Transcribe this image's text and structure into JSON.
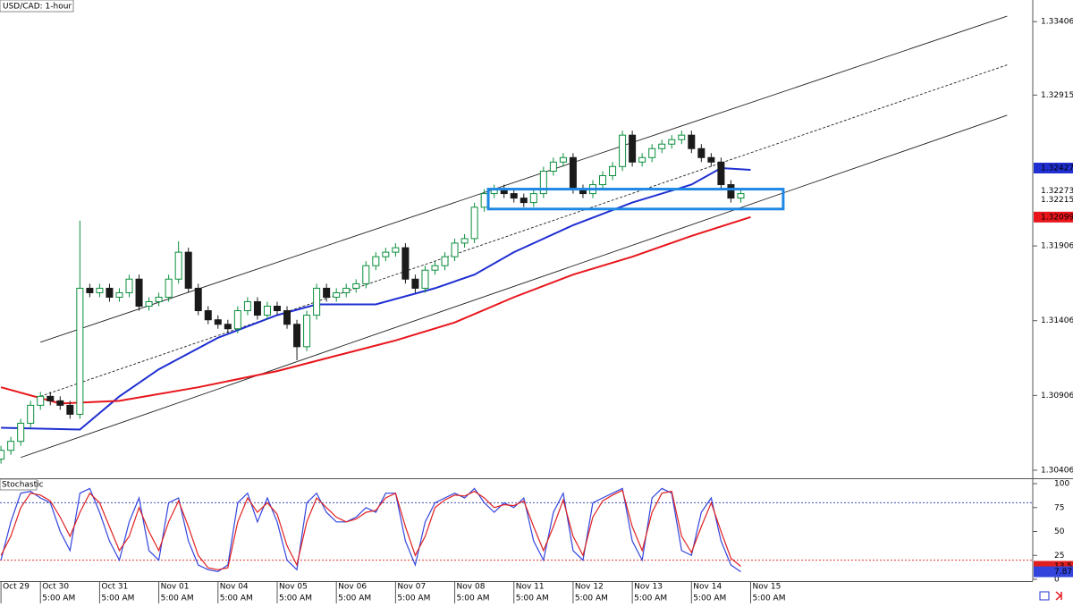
{
  "chart_data": [
    {
      "type": "candlestick",
      "title": "USD/CAD: 1-hour",
      "open": [
        1.3048,
        1.30539,
        1.30599,
        1.3072,
        1.3084,
        1.309,
        1.3087,
        1.3084,
        1.3078,
        1.31623,
        1.31593,
        1.31623,
        1.31563,
        1.31593,
        1.31684,
        1.31503,
        1.31533,
        1.31563,
        1.31684,
        1.31864,
        1.31623,
        1.31473,
        1.31412,
        1.31382,
        1.31352,
        1.31473,
        1.31533,
        1.31443,
        1.31503,
        1.31473,
        1.31382,
        1.31232,
        1.31443,
        1.31623,
        1.31563,
        1.31593,
        1.31623,
        1.31653,
        1.31774,
        1.31834,
        1.31864,
        1.31894,
        1.31684,
        1.31623,
        1.31744,
        1.31774,
        1.31834,
        1.31925,
        1.31955,
        1.32165,
        1.32256,
        1.32286,
        1.32256,
        1.32226,
        1.32196,
        1.32256,
        1.32406,
        1.32467,
        1.32497,
        1.32286,
        1.32256,
        1.32316,
        1.32376,
        1.32437,
        1.32647,
        1.32467,
        1.32497,
        1.32557,
        1.32587,
        1.32617,
        1.32647,
        1.32557,
        1.32497,
        1.32467,
        1.32316,
        1.32226
      ],
      "high": [
        1.30569,
        1.30629,
        1.3075,
        1.3087,
        1.3093,
        1.3093,
        1.309,
        1.3087,
        1.32075,
        1.31653,
        1.31653,
        1.31653,
        1.31623,
        1.31714,
        1.31714,
        1.31563,
        1.31593,
        1.31714,
        1.31937,
        1.31894,
        1.31653,
        1.31503,
        1.31442,
        1.31412,
        1.31503,
        1.31563,
        1.31563,
        1.31533,
        1.31533,
        1.31503,
        1.31412,
        1.31473,
        1.31653,
        1.31653,
        1.31623,
        1.31653,
        1.31683,
        1.31804,
        1.31864,
        1.31894,
        1.31924,
        1.31924,
        1.31714,
        1.31774,
        1.31804,
        1.31864,
        1.31955,
        1.31985,
        1.32195,
        1.32286,
        1.32316,
        1.32316,
        1.32286,
        1.32256,
        1.32286,
        1.32436,
        1.32497,
        1.32527,
        1.32527,
        1.32316,
        1.32346,
        1.32406,
        1.32467,
        1.32677,
        1.32677,
        1.32527,
        1.32587,
        1.32617,
        1.32647,
        1.32677,
        1.32677,
        1.32587,
        1.32527,
        1.32497,
        1.32346,
        1.32286
      ],
      "low": [
        1.3045,
        1.30509,
        1.30569,
        1.3069,
        1.3081,
        1.3084,
        1.3081,
        1.3075,
        1.3075,
        1.31563,
        1.31563,
        1.31533,
        1.31533,
        1.31563,
        1.31473,
        1.31473,
        1.31503,
        1.31533,
        1.31654,
        1.31593,
        1.31443,
        1.31382,
        1.31352,
        1.31322,
        1.31322,
        1.31443,
        1.31413,
        1.31413,
        1.31443,
        1.31352,
        1.31142,
        1.31202,
        1.31413,
        1.31533,
        1.31533,
        1.31563,
        1.31593,
        1.31623,
        1.31744,
        1.31804,
        1.31834,
        1.31654,
        1.31593,
        1.31593,
        1.31714,
        1.31744,
        1.31804,
        1.31895,
        1.31925,
        1.32135,
        1.32226,
        1.32226,
        1.32196,
        1.32166,
        1.32166,
        1.32226,
        1.32376,
        1.32437,
        1.32256,
        1.32226,
        1.32226,
        1.32286,
        1.32346,
        1.32407,
        1.32437,
        1.32437,
        1.32467,
        1.32527,
        1.32557,
        1.32587,
        1.32527,
        1.32467,
        1.32437,
        1.32286,
        1.32196,
        1.32196
      ],
      "close": [
        1.30539,
        1.30599,
        1.3072,
        1.3084,
        1.309,
        1.3087,
        1.3084,
        1.3078,
        1.31623,
        1.31593,
        1.31623,
        1.31563,
        1.31593,
        1.31684,
        1.31503,
        1.31533,
        1.31563,
        1.31684,
        1.31864,
        1.31623,
        1.31473,
        1.31412,
        1.31382,
        1.31352,
        1.31473,
        1.31533,
        1.31443,
        1.31503,
        1.31473,
        1.31382,
        1.31232,
        1.31443,
        1.31623,
        1.31563,
        1.31593,
        1.31623,
        1.31653,
        1.31774,
        1.31834,
        1.31864,
        1.31894,
        1.31684,
        1.31623,
        1.31744,
        1.31774,
        1.31834,
        1.31925,
        1.31955,
        1.32165,
        1.32256,
        1.32286,
        1.32256,
        1.32226,
        1.32196,
        1.32256,
        1.32406,
        1.32467,
        1.32497,
        1.32286,
        1.32256,
        1.32316,
        1.32376,
        1.32437,
        1.32647,
        1.32467,
        1.32497,
        1.32557,
        1.32587,
        1.32617,
        1.32647,
        1.32557,
        1.32497,
        1.32467,
        1.32316,
        1.32226,
        1.32256
      ],
      "up_color": "#0a8f3c",
      "down_color": "#1a1a1a",
      "xlim": [
        -0.1,
        104.6
      ],
      "ylim": [
        1.30352,
        1.33551
      ],
      "yticks": [
        1.33406,
        1.32915,
        1.31906,
        1.31406,
        1.30906,
        1.30406
      ],
      "price_labels": [
        {
          "value": 1.32427,
          "color": "#1f2fd1"
        },
        {
          "value": 1.32273,
          "color": "#ffffff"
        },
        {
          "value": 1.32215,
          "color": "#ffffff"
        },
        {
          "value": 1.32099,
          "color": "#e8151b"
        }
      ],
      "overlays": [
        {
          "color": "#1f2fd1",
          "x": [
            0,
            8,
            12,
            16,
            22,
            28,
            32,
            38,
            44,
            48,
            52,
            58,
            64,
            70,
            73,
            76
          ],
          "values": [
            1.3069,
            1.30678,
            1.309,
            1.31081,
            1.31292,
            1.31443,
            1.31515,
            1.31515,
            1.31623,
            1.31714,
            1.31864,
            1.32045,
            1.32196,
            1.32316,
            1.32427,
            1.32415
          ]
        },
        {
          "color": "#e8151b",
          "x": [
            0,
            6,
            12,
            20,
            28,
            34,
            40,
            46,
            52,
            58,
            64,
            70,
            76
          ],
          "values": [
            1.30961,
            1.30852,
            1.3087,
            1.30961,
            1.31069,
            1.31172,
            1.31274,
            1.31394,
            1.31563,
            1.31714,
            1.31834,
            1.31973,
            1.32099
          ]
        }
      ],
      "channel": [
        {
          "x": [
            4,
            102
          ],
          "values": [
            1.31262,
            1.33443
          ],
          "dashed": false
        },
        {
          "x": [
            4,
            102
          ],
          "values": [
            1.309,
            1.33117
          ],
          "dashed": true
        },
        {
          "x": [
            2,
            102
          ],
          "values": [
            1.30491,
            1.3278
          ],
          "dashed": false
        }
      ],
      "rectangle": {
        "x": [
          49.4,
          79.3
        ],
        "values": [
          1.32286,
          1.32153
        ],
        "color": "#1e88e5"
      }
    },
    {
      "type": "line",
      "title": "Stochastic",
      "xlim": [
        -0.1,
        104.6
      ],
      "ylim": [
        0,
        100
      ],
      "yticks": [
        100,
        75,
        50,
        25,
        0
      ],
      "levels": [
        {
          "value": 80,
          "color": "#3f51b5"
        },
        {
          "value": 20,
          "color": "#e53935"
        }
      ],
      "series": [
        {
          "color": "#3344dd",
          "values": [
            20,
            60,
            90,
            92,
            85,
            80,
            50,
            30,
            90,
            95,
            70,
            40,
            20,
            60,
            85,
            30,
            20,
            80,
            85,
            40,
            15,
            10,
            8,
            15,
            80,
            90,
            60,
            85,
            60,
            20,
            10,
            80,
            90,
            70,
            60,
            60,
            65,
            75,
            70,
            90,
            90,
            40,
            15,
            60,
            80,
            85,
            90,
            85,
            95,
            80,
            70,
            80,
            75,
            85,
            40,
            20,
            70,
            90,
            30,
            20,
            80,
            85,
            90,
            95,
            40,
            20,
            85,
            95,
            90,
            30,
            25,
            70,
            85,
            40,
            15,
            7.87
          ]
        },
        {
          "color": "#e02020",
          "values": [
            25,
            45,
            75,
            90,
            88,
            82,
            65,
            45,
            70,
            90,
            80,
            55,
            30,
            45,
            75,
            50,
            30,
            60,
            82,
            55,
            25,
            12,
            10,
            12,
            60,
            85,
            70,
            80,
            68,
            35,
            15,
            60,
            85,
            75,
            65,
            60,
            63,
            70,
            72,
            85,
            90,
            55,
            25,
            45,
            75,
            83,
            88,
            87,
            92,
            85,
            75,
            78,
            77,
            82,
            55,
            30,
            55,
            83,
            45,
            25,
            65,
            82,
            88,
            93,
            55,
            30,
            70,
            90,
            92,
            45,
            28,
            55,
            80,
            50,
            22,
            13.57
          ]
        }
      ],
      "xticks": [
        {
          "value": 0,
          "label": "Oct 29"
        },
        {
          "value": 4,
          "label": "Oct 30"
        },
        {
          "value": 10,
          "label": "Oct 31"
        },
        {
          "value": 16,
          "label": "Nov 01"
        },
        {
          "value": 22,
          "label": "Nov 04"
        },
        {
          "value": 28,
          "label": "Nov 05"
        },
        {
          "value": 34,
          "label": "Nov 06"
        },
        {
          "value": 40,
          "label": "Nov 07"
        },
        {
          "value": 46,
          "label": "Nov 08"
        },
        {
          "value": 52,
          "label": "Nov 11"
        },
        {
          "value": 58,
          "label": "Nov 12"
        },
        {
          "value": 64,
          "label": "Nov 13"
        },
        {
          "value": 70,
          "label": "Nov 14"
        },
        {
          "value": 76,
          "label": "Nov 15"
        }
      ],
      "xticks_time": [
        {
          "value": 4,
          "label": "5:00 AM"
        },
        {
          "value": 10,
          "label": "5:00 AM"
        },
        {
          "value": 16,
          "label": "5:00 AM"
        },
        {
          "value": 22,
          "label": "5:00 AM"
        },
        {
          "value": 28,
          "label": "5:00 AM"
        },
        {
          "value": 34,
          "label": "5:00 AM"
        },
        {
          "value": 40,
          "label": "5:00 AM"
        },
        {
          "value": 46,
          "label": "5:00 AM"
        },
        {
          "value": 52,
          "label": "5:00 AM"
        },
        {
          "value": 58,
          "label": "5:00 AM"
        },
        {
          "value": 64,
          "label": "5:00 AM"
        },
        {
          "value": 70,
          "label": "5:00 AM"
        },
        {
          "value": 76,
          "label": "5:00 AM"
        }
      ]
    }
  ]
}
